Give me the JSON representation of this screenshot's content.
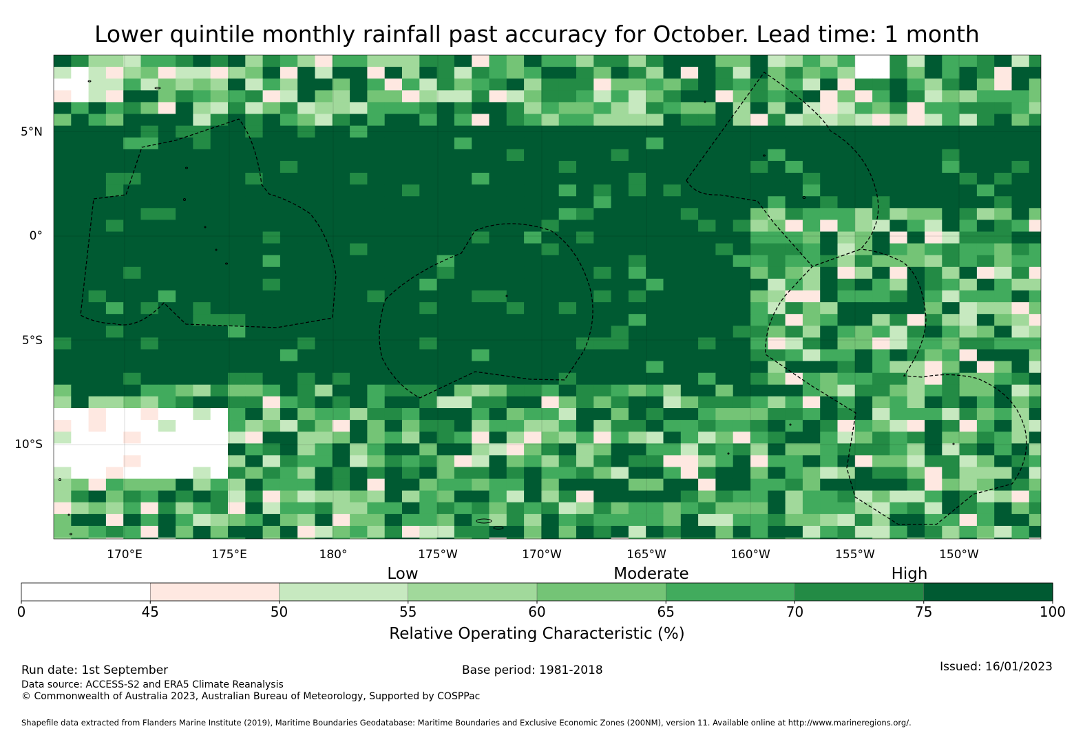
{
  "title": "Lower quintile monthly rainfall past accuracy for October. Lead time: 1 month",
  "map": {
    "lat_labels": [
      "5°N",
      "0°",
      "5°S",
      "10°S"
    ],
    "lon_labels": [
      "170°E",
      "175°E",
      "180°",
      "175°W",
      "170°W",
      "165°W",
      "160°W",
      "155°W",
      "150°W"
    ],
    "lon_range": [
      166.6,
      213.8
    ],
    "lat_range": [
      -14.5,
      8.7
    ],
    "eez_boundaries": [
      "Tuvalu (west)",
      "Tokelau and Samoa (center)",
      "Kiribati Line Islands (east)",
      "Cook Islands (southeast)"
    ]
  },
  "legend": {
    "categories": [
      "Low",
      "Moderate",
      "High"
    ],
    "bins": [
      {
        "from": 0,
        "to": 45,
        "color": "#ffffff"
      },
      {
        "from": 45,
        "to": 50,
        "color": "#fee8e1"
      },
      {
        "from": 50,
        "to": 55,
        "color": "#c7e9c0"
      },
      {
        "from": 55,
        "to": 60,
        "color": "#a1d99b"
      },
      {
        "from": 60,
        "to": 65,
        "color": "#74c476"
      },
      {
        "from": 65,
        "to": 70,
        "color": "#41ab5d"
      },
      {
        "from": 70,
        "to": 75,
        "color": "#238b45"
      },
      {
        "from": 75,
        "to": 100,
        "color": "#005a32"
      }
    ],
    "ticks": [
      "0",
      "45",
      "50",
      "55",
      "60",
      "65",
      "70",
      "75",
      "100"
    ],
    "axis_title": "Relative Operating Characteristic (%)"
  },
  "footer": {
    "run_date": "Run date: 1st September",
    "base_period": "Base period: 1981-2018",
    "issued": "Issued: 16/01/2023",
    "data_source": "Data source: ACCESS-S2 and ERA5 Climate Reanalysis",
    "copyright": "© Commonwealth of Australia 2023, Australian Bureau of Meteorology, Supported by COSPPac",
    "shapefile": "Shapefile data extracted from Flanders Marine Institute (2019), Maritime Boundaries Geodatabase: Maritime Boundaries and Exclusive Economic Zones (200NM), version 11. Available online at http://www.marineregions.org/."
  }
}
